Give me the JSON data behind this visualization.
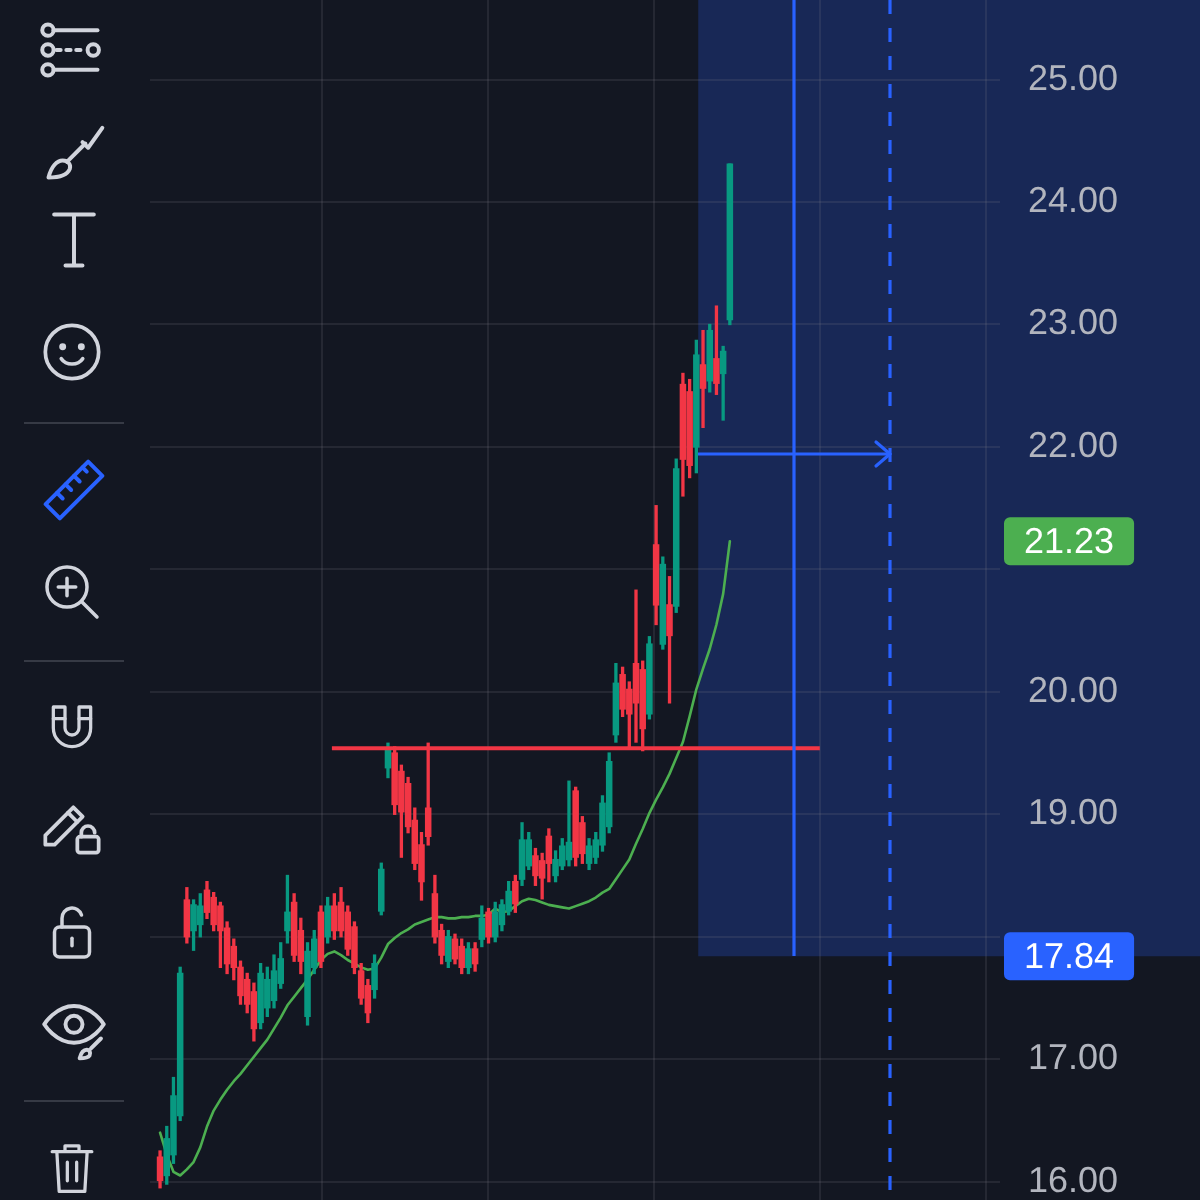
{
  "chart_data": {
    "type": "candlestick",
    "categories": [
      null,
      null,
      null,
      null,
      null,
      null,
      null,
      null,
      null,
      null,
      null,
      null,
      null,
      null,
      null,
      null,
      null,
      null,
      null,
      null,
      null,
      null,
      null,
      null,
      null,
      null,
      null,
      null,
      null,
      null,
      null,
      null,
      null,
      null,
      null,
      null,
      null,
      null,
      null,
      null,
      null,
      null,
      null,
      null,
      null,
      null,
      null,
      null,
      null,
      null,
      null,
      null,
      null,
      null,
      null,
      null,
      null,
      null,
      null,
      null,
      null,
      null,
      null,
      null,
      null,
      null,
      null,
      null,
      null,
      null,
      null,
      null,
      null,
      null,
      null,
      null,
      null,
      null,
      null,
      null,
      null,
      null,
      null,
      null,
      null,
      null
    ],
    "ohlc": [
      [
        16.2,
        16.25,
        15.95,
        16.01
      ],
      [
        16.05,
        16.45,
        15.98,
        16.35
      ],
      [
        16.22,
        16.85,
        16.15,
        16.7
      ],
      [
        16.54,
        17.75,
        16.5,
        17.7
      ],
      [
        18.3,
        18.4,
        17.95,
        18.0
      ],
      [
        18.05,
        18.3,
        17.89,
        18.26
      ],
      [
        18.1,
        18.35,
        18.0,
        18.25
      ],
      [
        18.38,
        18.45,
        18.15,
        18.2
      ],
      [
        18.32,
        18.36,
        18.05,
        18.1
      ],
      [
        18.25,
        18.28,
        17.75,
        18.05
      ],
      [
        18.07,
        18.12,
        17.7,
        17.78
      ],
      [
        17.92,
        17.98,
        17.65,
        17.75
      ],
      [
        17.75,
        17.8,
        17.45,
        17.52
      ],
      [
        17.65,
        17.7,
        17.38,
        17.45
      ],
      [
        17.55,
        17.62,
        17.15,
        17.25
      ],
      [
        17.3,
        17.78,
        17.25,
        17.7
      ],
      [
        17.42,
        17.75,
        17.35,
        17.65
      ],
      [
        17.48,
        17.85,
        17.42,
        17.72
      ],
      [
        17.62,
        17.95,
        17.58,
        17.82
      ],
      [
        18.05,
        18.5,
        17.95,
        18.2
      ],
      [
        18.28,
        18.35,
        17.8,
        17.85
      ],
      [
        18.05,
        18.15,
        17.7,
        17.8
      ],
      [
        17.35,
        17.95,
        17.28,
        17.88
      ],
      [
        17.75,
        18.05,
        17.7,
        17.98
      ],
      [
        18.2,
        18.25,
        17.75,
        17.8
      ],
      [
        18.0,
        18.32,
        17.95,
        18.25
      ],
      [
        18.25,
        18.35,
        17.98,
        18.05
      ],
      [
        18.28,
        18.4,
        18.0,
        18.05
      ],
      [
        18.2,
        18.25,
        17.85,
        17.9
      ],
      [
        18.08,
        18.12,
        17.7,
        17.75
      ],
      [
        17.72,
        17.78,
        17.45,
        17.5
      ],
      [
        17.6,
        17.65,
        17.3,
        17.38
      ],
      [
        17.57,
        17.85,
        17.5,
        17.78
      ],
      [
        18.21,
        18.6,
        18.18,
        18.55
      ],
      [
        19.38,
        19.58,
        19.3,
        19.54
      ],
      [
        19.5,
        19.55,
        19.0,
        19.08
      ],
      [
        19.35,
        19.4,
        18.65,
        19.02
      ],
      [
        19.25,
        19.3,
        18.85,
        18.9
      ],
      [
        18.95,
        19.05,
        18.55,
        18.6
      ],
      [
        18.75,
        18.85,
        18.3,
        18.45
      ],
      [
        19.05,
        19.58,
        18.75,
        18.82
      ],
      [
        18.35,
        18.5,
        17.95,
        18.0
      ],
      [
        18.05,
        18.1,
        17.78,
        17.85
      ],
      [
        17.8,
        18.05,
        17.75,
        18.0
      ],
      [
        17.98,
        18.02,
        17.78,
        17.82
      ],
      [
        17.92,
        17.98,
        17.7,
        17.75
      ],
      [
        17.75,
        17.95,
        17.7,
        17.9
      ],
      [
        17.9,
        17.95,
        17.72,
        17.78
      ],
      [
        17.98,
        18.25,
        17.92,
        18.15
      ],
      [
        18.2,
        18.23,
        17.95,
        18.0
      ],
      [
        18.0,
        18.28,
        17.96,
        18.2
      ],
      [
        18.1,
        18.3,
        18.05,
        18.26
      ],
      [
        18.21,
        18.45,
        18.18,
        18.37
      ],
      [
        18.45,
        18.5,
        18.2,
        18.27
      ],
      [
        18.47,
        18.93,
        18.42,
        18.79
      ],
      [
        18.58,
        18.85,
        18.55,
        18.79
      ],
      [
        18.66,
        18.72,
        18.42,
        18.5
      ],
      [
        18.62,
        18.68,
        18.31,
        18.48
      ],
      [
        18.82,
        18.88,
        18.45,
        18.6
      ],
      [
        18.5,
        18.7,
        18.45,
        18.63
      ],
      [
        18.58,
        18.8,
        18.55,
        18.74
      ],
      [
        18.63,
        19.27,
        18.58,
        18.77
      ],
      [
        19.19,
        19.22,
        18.58,
        18.65
      ],
      [
        18.93,
        18.98,
        18.6,
        18.68
      ],
      [
        18.6,
        18.8,
        18.55,
        18.74
      ],
      [
        18.65,
        18.85,
        18.6,
        18.79
      ],
      [
        18.75,
        19.15,
        18.7,
        19.09
      ],
      [
        18.9,
        19.5,
        18.85,
        19.43
      ],
      [
        19.65,
        20.23,
        19.59,
        20.07
      ],
      [
        20.14,
        20.2,
        19.8,
        19.86
      ],
      [
        20.02,
        20.08,
        19.55,
        19.82
      ],
      [
        20.23,
        20.83,
        19.59,
        19.91
      ],
      [
        20.18,
        20.25,
        19.52,
        19.7
      ],
      [
        19.82,
        20.45,
        19.78,
        20.39
      ],
      [
        21.2,
        21.52,
        20.55,
        20.71
      ],
      [
        20.39,
        21.1,
        20.35,
        21.04
      ],
      [
        20.71,
        20.94,
        19.91,
        20.46
      ],
      [
        20.7,
        21.9,
        20.65,
        21.82
      ],
      [
        22.51,
        22.6,
        21.6,
        21.9
      ],
      [
        22.45,
        22.55,
        21.75,
        21.85
      ],
      [
        22.0,
        22.87,
        21.79,
        22.75
      ],
      [
        22.67,
        22.95,
        22.16,
        22.48
      ],
      [
        22.54,
        23.0,
        22.45,
        22.95
      ],
      [
        22.72,
        23.15,
        22.43,
        22.52
      ],
      [
        22.6,
        22.82,
        22.22,
        22.78
      ],
      [
        23.04,
        24.31,
        23.0,
        24.31
      ]
    ],
    "colors": [
      "#f23645",
      "#089981",
      "#089981",
      "#089981",
      "#f23645",
      "#089981",
      "#089981",
      "#f23645",
      "#f23645",
      "#f23645",
      "#f23645",
      "#f23645",
      "#f23645",
      "#f23645",
      "#f23645",
      "#089981",
      "#089981",
      "#089981",
      "#089981",
      "#089981",
      "#f23645",
      "#f23645",
      "#089981",
      "#089981",
      "#f23645",
      "#089981",
      "#f23645",
      "#f23645",
      "#f23645",
      "#f23645",
      "#f23645",
      "#f23645",
      "#089981",
      "#089981",
      "#089981",
      "#f23645",
      "#f23645",
      "#f23645",
      "#f23645",
      "#f23645",
      "#f23645",
      "#f23645",
      "#f23645",
      "#089981",
      "#f23645",
      "#f23645",
      "#089981",
      "#f23645",
      "#089981",
      "#f23645",
      "#089981",
      "#089981",
      "#089981",
      "#f23645",
      "#089981",
      "#089981",
      "#f23645",
      "#f23645",
      "#f23645",
      "#089981",
      "#089981",
      "#089981",
      "#f23645",
      "#f23645",
      "#089981",
      "#089981",
      "#089981",
      "#089981",
      "#089981",
      "#f23645",
      "#f23645",
      "#f23645",
      "#f23645",
      "#089981",
      "#f23645",
      "#089981",
      "#f23645",
      "#089981",
      "#f23645",
      "#f23645",
      "#089981",
      "#f23645",
      "#089981",
      "#f23645",
      "#089981",
      "#089981"
    ],
    "series": [
      {
        "type": "line",
        "color": "#4caf50",
        "values": [
          16.4,
          16.22,
          16.08,
          16.05,
          16.1,
          16.16,
          16.28,
          16.45,
          16.58,
          16.67,
          16.75,
          16.82,
          16.88,
          16.95,
          17.02,
          17.09,
          17.16,
          17.25,
          17.34,
          17.44,
          17.51,
          17.58,
          17.65,
          17.73,
          17.81,
          17.86,
          17.88,
          17.85,
          17.81,
          17.78,
          17.75,
          17.73,
          17.74,
          17.83,
          17.94,
          17.99,
          18.03,
          18.06,
          18.1,
          18.12,
          18.14,
          18.16,
          18.16,
          18.15,
          18.15,
          18.16,
          18.16,
          18.17,
          18.17,
          18.18,
          18.23,
          18.2,
          18.21,
          18.25,
          18.29,
          18.31,
          18.3,
          18.28,
          18.26,
          18.25,
          18.24,
          18.23,
          18.25,
          18.27,
          18.29,
          18.32,
          18.36,
          18.39,
          18.47,
          18.55,
          18.63,
          18.76,
          18.88,
          19.01,
          19.12,
          19.22,
          19.33,
          19.46,
          19.59,
          19.8,
          20.02,
          20.19,
          20.35,
          20.55,
          20.8,
          21.23
        ]
      }
    ],
    "ylim": [
      15.85,
      25.65
    ],
    "yticks": [
      {
        "value": 16,
        "label": "16.00"
      },
      {
        "value": 17,
        "label": "17.00"
      },
      {
        "value": 18,
        "label": null
      },
      {
        "value": 19,
        "label": "19.00"
      },
      {
        "value": 20,
        "label": "20.00"
      },
      {
        "value": 21,
        "label": null
      },
      {
        "value": 22,
        "label": "22.00"
      },
      {
        "value": 23,
        "label": "23.00"
      },
      {
        "value": 24,
        "label": "24.00"
      },
      {
        "value": 25,
        "label": "25.00"
      }
    ],
    "grid": true,
    "tick_labels": "y",
    "ref_lines": [
      {
        "axis": "y",
        "value": 19.54,
        "color": "#f23645"
      }
    ],
    "bands": [
      {
        "axis": "y",
        "from": 17.84,
        "to": 25.65,
        "label": "17.84",
        "color": "#2962ff"
      }
    ],
    "annotations": [
      "21.23"
    ]
  }
}
